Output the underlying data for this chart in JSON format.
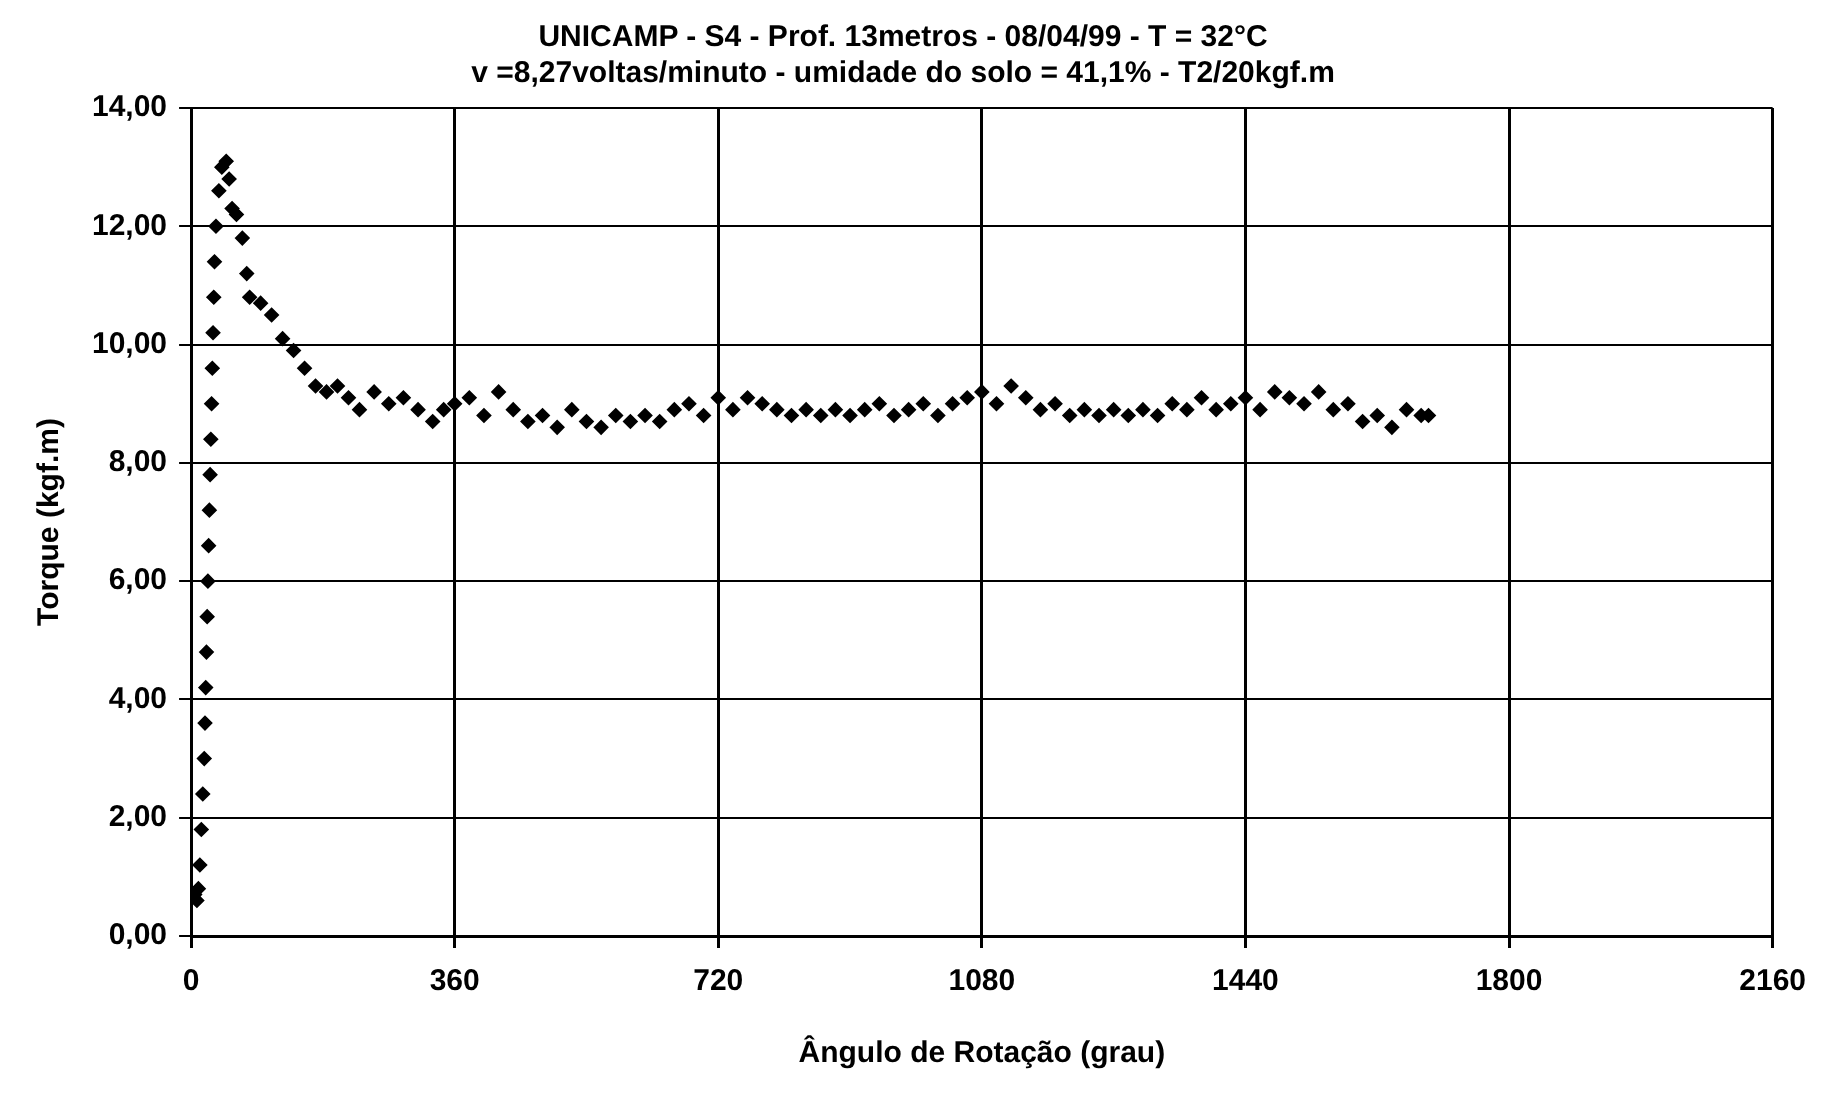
{
  "chart_data": {
    "type": "scatter",
    "title": "UNICAMP - S4 - Prof. 13metros - 08/04/99 - T = 32°C",
    "subtitle": "v =8,27voltas/minuto - umidade do solo = 41,1% - T2/20kgf.m",
    "xlabel": "Ângulo de Rotação (grau)",
    "ylabel": "Torque (kgf.m)",
    "xlim": [
      0,
      2160
    ],
    "xticks": [
      0,
      360,
      720,
      1080,
      1440,
      1800,
      2160
    ],
    "ylim": [
      0,
      14
    ],
    "yticks": [
      {
        "value": 0,
        "label": "0,00"
      },
      {
        "value": 2,
        "label": "2,00"
      },
      {
        "value": 4,
        "label": "4,00"
      },
      {
        "value": 6,
        "label": "6,00"
      },
      {
        "value": 8,
        "label": "8,00"
      },
      {
        "value": 10,
        "label": "10,00"
      },
      {
        "value": 12,
        "label": "12,00"
      },
      {
        "value": 14,
        "label": "14,00"
      }
    ],
    "grid": true,
    "legend": false,
    "marker": "diamond",
    "series": [
      {
        "color": "#000000",
        "x": [
          5,
          8,
          10,
          12,
          14,
          16,
          18,
          19,
          20,
          21,
          22,
          23,
          24,
          25,
          26,
          27,
          28,
          29,
          30,
          31,
          32,
          34,
          38,
          42,
          48,
          52,
          56,
          62,
          70,
          76,
          80,
          95,
          110,
          125,
          140,
          155,
          170,
          185,
          200,
          215,
          230,
          250,
          270,
          290,
          310,
          330,
          345,
          360,
          380,
          400,
          420,
          440,
          460,
          480,
          500,
          520,
          540,
          560,
          580,
          600,
          620,
          640,
          660,
          680,
          700,
          720,
          740,
          760,
          780,
          800,
          820,
          840,
          860,
          880,
          900,
          920,
          940,
          960,
          980,
          1000,
          1020,
          1040,
          1060,
          1080,
          1100,
          1120,
          1140,
          1160,
          1180,
          1200,
          1220,
          1240,
          1260,
          1280,
          1300,
          1320,
          1340,
          1360,
          1380,
          1400,
          1420,
          1440,
          1460,
          1480,
          1500,
          1520,
          1540,
          1560,
          1580,
          1600,
          1620,
          1640,
          1660,
          1680,
          1690
        ],
        "values": [
          0.7,
          0.6,
          0.8,
          1.2,
          1.8,
          2.4,
          3.0,
          3.6,
          4.2,
          4.8,
          5.4,
          6.0,
          6.6,
          7.2,
          7.8,
          8.4,
          9.0,
          9.6,
          10.2,
          10.8,
          11.4,
          12.0,
          12.6,
          13.0,
          13.1,
          12.8,
          12.3,
          12.2,
          11.8,
          11.2,
          10.8,
          10.7,
          10.5,
          10.1,
          9.9,
          9.6,
          9.3,
          9.2,
          9.3,
          9.1,
          8.9,
          9.2,
          9.0,
          9.1,
          8.9,
          8.7,
          8.9,
          9.0,
          9.1,
          8.8,
          9.2,
          8.9,
          8.7,
          8.8,
          8.6,
          8.9,
          8.7,
          8.6,
          8.8,
          8.7,
          8.8,
          8.7,
          8.9,
          9.0,
          8.8,
          9.1,
          8.9,
          9.1,
          9.0,
          8.9,
          8.8,
          8.9,
          8.8,
          8.9,
          8.8,
          8.9,
          9.0,
          8.8,
          8.9,
          9.0,
          8.8,
          9.0,
          9.1,
          9.2,
          9.0,
          9.3,
          9.1,
          8.9,
          9.0,
          8.8,
          8.9,
          8.8,
          8.9,
          8.8,
          8.9,
          8.8,
          9.0,
          8.9,
          9.1,
          8.9,
          9.0,
          9.1,
          8.9,
          9.2,
          9.1,
          9.0,
          9.2,
          8.9,
          9.0,
          8.7,
          8.8,
          8.6,
          8.9,
          8.8,
          8.8
        ]
      }
    ]
  }
}
